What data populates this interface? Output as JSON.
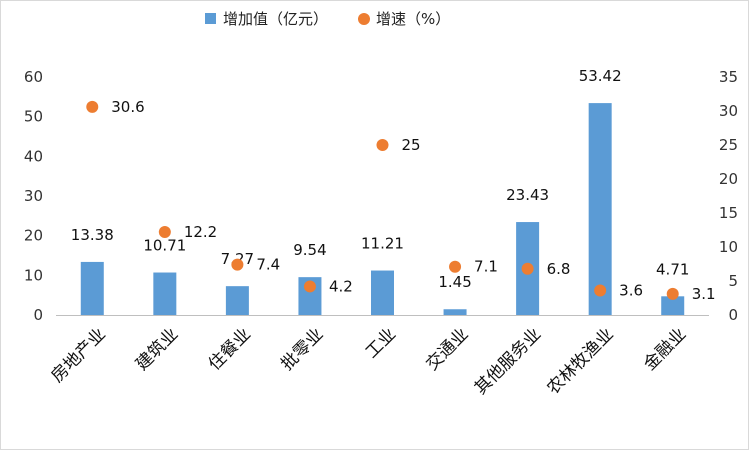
{
  "chart_data": {
    "type": "bar",
    "categories": [
      "房地产业",
      "建筑业",
      "住餐业",
      "批零业",
      "工业",
      "交通业",
      "其他服务业",
      "农林牧渔业",
      "金融业"
    ],
    "series": [
      {
        "name": "增加值（亿元）",
        "type": "bar",
        "axis": "left",
        "color": "#5B9BD5",
        "values": [
          13.38,
          10.71,
          7.27,
          9.54,
          11.21,
          1.45,
          23.43,
          53.42,
          4.71
        ]
      },
      {
        "name": "增速（%）",
        "type": "scatter",
        "axis": "right",
        "color": "#ED7D31",
        "values": [
          30.6,
          12.2,
          7.4,
          4.2,
          25,
          7.1,
          6.8,
          3.6,
          3.1
        ]
      }
    ],
    "y_left": {
      "min": 0,
      "max": 60,
      "ticks": [
        0,
        10,
        20,
        30,
        40,
        50,
        60
      ]
    },
    "y_right": {
      "min": 0,
      "max": 35,
      "ticks": [
        0,
        5,
        10,
        15,
        20,
        25,
        30,
        35
      ]
    },
    "bar_labels": [
      "13.38",
      "10.71",
      "7.27",
      "9.54",
      "11.21",
      "1.45",
      "23.43",
      "53.42",
      "4.71"
    ],
    "dot_labels": [
      "30.6",
      "12.2",
      "7.4",
      "4.2",
      "25",
      "7.1",
      "6.8",
      "3.6",
      "3.1"
    ],
    "legend_position": "top",
    "grid": false
  }
}
